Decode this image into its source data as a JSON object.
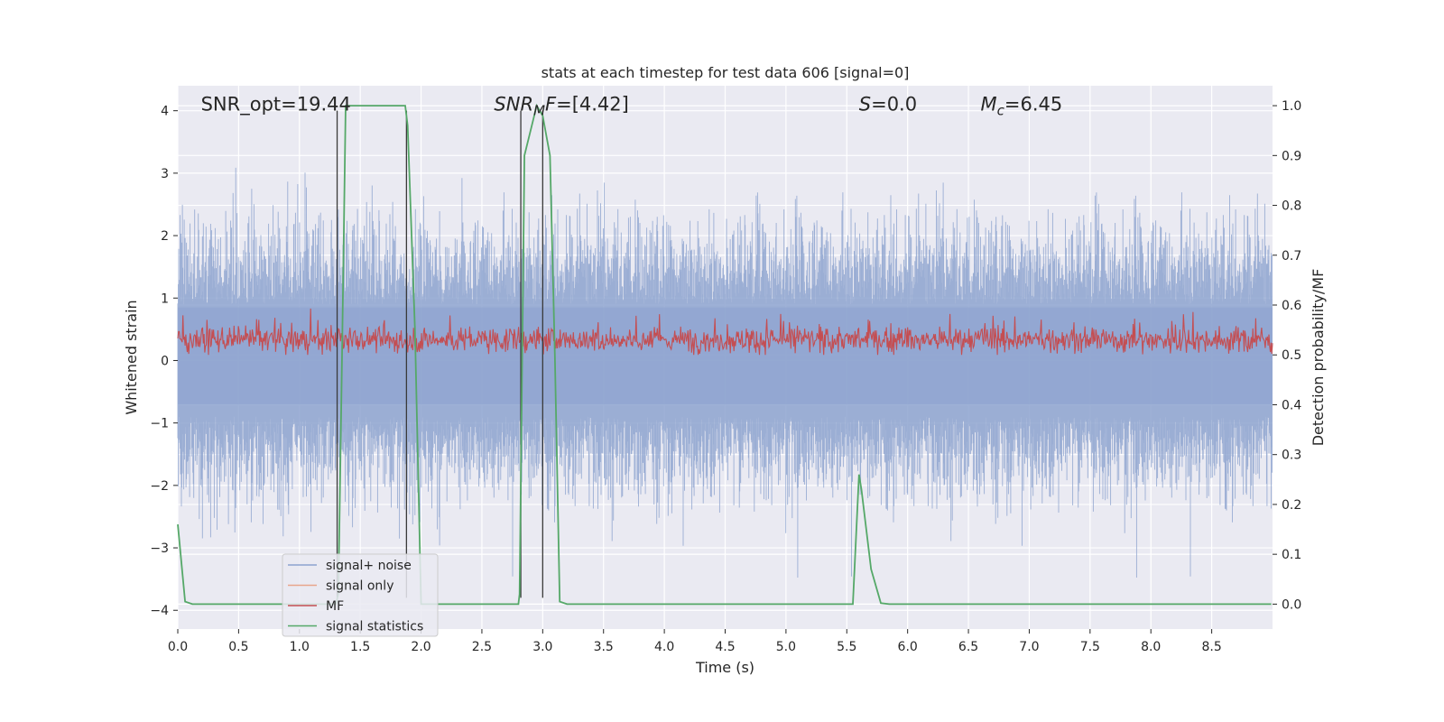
{
  "chart_data": {
    "type": "line",
    "title": "stats at each timestep for test data 606 [signal=0]",
    "xlabel": "Time (s)",
    "ylabel_left": "Whitened strain",
    "ylabel_right": "Detection probability/MF",
    "xlim": [
      0,
      9.0
    ],
    "ylim_left": [
      -4.3,
      4.4
    ],
    "ylim_right": [
      -0.05,
      1.04
    ],
    "xticks": [
      0.0,
      0.5,
      1.0,
      1.5,
      2.0,
      2.5,
      3.0,
      3.5,
      4.0,
      4.5,
      5.0,
      5.5,
      6.0,
      6.5,
      7.0,
      7.5,
      8.0,
      8.5
    ],
    "xtick_labels": [
      "0.0",
      "0.5",
      "1.0",
      "1.5",
      "2.0",
      "2.5",
      "3.0",
      "3.5",
      "4.0",
      "4.5",
      "5.0",
      "5.5",
      "6.0",
      "6.5",
      "7.0",
      "7.5",
      "8.0",
      "8.5"
    ],
    "yticks_left": [
      -4,
      -3,
      -2,
      -1,
      0,
      1,
      2,
      3,
      4
    ],
    "ytick_labels_left": [
      "−4",
      "−3",
      "−2",
      "−1",
      "0",
      "1",
      "2",
      "3",
      "4"
    ],
    "yticks_right": [
      0.0,
      0.1,
      0.2,
      0.3,
      0.4,
      0.5,
      0.6,
      0.7,
      0.8,
      0.9,
      1.0
    ],
    "ytick_labels_right": [
      "0.0",
      "0.1",
      "0.2",
      "0.3",
      "0.4",
      "0.5",
      "0.6",
      "0.7",
      "0.8",
      "0.9",
      "1.0"
    ],
    "grid": true,
    "legend_placement": "lower-left",
    "annotations": [
      {
        "x": 0.19,
        "y": 4.0,
        "text": "SNR_opt=19.44",
        "italic_part": ""
      },
      {
        "x": 2.6,
        "y": 4.0,
        "text": "=[4.42]",
        "italic_part": "SNR",
        "sub": "M",
        "italic_tail": "F"
      },
      {
        "x": 5.6,
        "y": 4.0,
        "text": "=0.0",
        "italic_part": "S",
        "sub": ""
      },
      {
        "x": 6.6,
        "y": 4.0,
        "text": "=6.45",
        "italic_part": "M",
        "sub": "c"
      }
    ],
    "vlines": [
      1.31,
      1.88,
      2.82,
      3.0
    ],
    "series": [
      {
        "name": "signal+ noise",
        "color": "#8da3cf",
        "axis": "left",
        "kind": "noise",
        "amplitude_envelope": [
          -4.1,
          3.9
        ]
      },
      {
        "name": "signal only",
        "color": "#e8a58c",
        "axis": "left",
        "kind": "flat",
        "values": []
      },
      {
        "name": "MF",
        "color": "#c44e52",
        "axis": "right",
        "kind": "mf-noise",
        "baseline": 0.53,
        "range": [
          0.5,
          0.61
        ]
      },
      {
        "name": "signal statistics",
        "color": "#55a868",
        "axis": "right",
        "kind": "line",
        "x": [
          0.0,
          0.06,
          0.12,
          1.3,
          1.32,
          1.35,
          1.38,
          1.87,
          1.89,
          1.95,
          2.0,
          2.8,
          2.81,
          2.85,
          2.92,
          2.95,
          3.0,
          3.06,
          3.1,
          3.14,
          3.2,
          5.55,
          5.6,
          5.62,
          5.7,
          5.78,
          5.85,
          8.99
        ],
        "y": [
          0.16,
          0.005,
          0.0,
          0.0,
          0.02,
          0.5,
          1.0,
          1.0,
          0.96,
          0.55,
          0.0,
          0.0,
          0.02,
          0.9,
          0.97,
          1.0,
          0.98,
          0.9,
          0.5,
          0.005,
          0.0,
          0.0,
          0.26,
          0.23,
          0.07,
          0.002,
          0.0,
          0.0
        ]
      }
    ]
  }
}
